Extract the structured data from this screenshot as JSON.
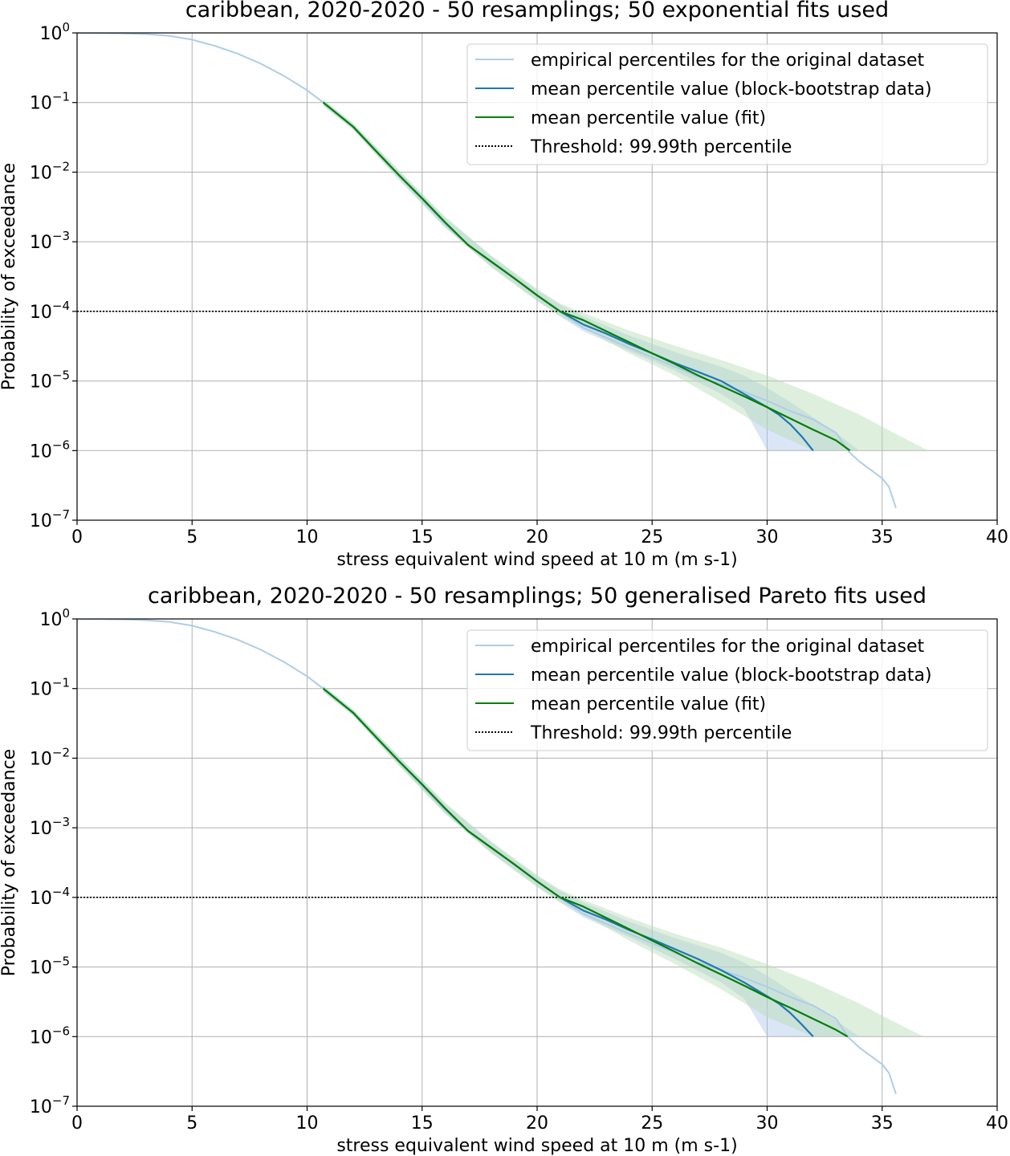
{
  "chart_data": [
    {
      "type": "line",
      "title": "caribbean, 2020-2020 - 50 resamplings; 50 exponential fits used",
      "xlabel": "stress equivalent wind speed at 10 m (m s-1)",
      "ylabel": "Probability of exceedance",
      "xlim": [
        0,
        40
      ],
      "ylim": [
        1e-07,
        1
      ],
      "yscale": "log",
      "grid": true,
      "legend_position": "top-right",
      "x_ticks": [
        "0",
        "5",
        "10",
        "15",
        "20",
        "25",
        "30",
        "35",
        "40"
      ],
      "y_ticks": [
        {
          "base": "10",
          "exp": "0"
        },
        {
          "base": "10",
          "exp": "−1"
        },
        {
          "base": "10",
          "exp": "−2"
        },
        {
          "base": "10",
          "exp": "−3"
        },
        {
          "base": "10",
          "exp": "−4"
        },
        {
          "base": "10",
          "exp": "−5"
        },
        {
          "base": "10",
          "exp": "−6"
        },
        {
          "base": "10",
          "exp": "−7"
        }
      ],
      "threshold": {
        "name": "Threshold: 99.99th percentile",
        "y": 0.0001,
        "color": "#000000"
      },
      "series": [
        {
          "name": "empirical percentiles for the original dataset",
          "color": "#aecde6",
          "points": [
            [
              0,
              1
            ],
            [
              1,
              0.995
            ],
            [
              2,
              0.985
            ],
            [
              3,
              0.96
            ],
            [
              4,
              0.91
            ],
            [
              5,
              0.8
            ],
            [
              6,
              0.65
            ],
            [
              7,
              0.5
            ],
            [
              8,
              0.36
            ],
            [
              9,
              0.24
            ],
            [
              10,
              0.15
            ],
            [
              10.7,
              0.1
            ],
            [
              12,
              0.045
            ],
            [
              13,
              0.02
            ],
            [
              14,
              0.009
            ],
            [
              15,
              0.004
            ],
            [
              16,
              0.0018
            ],
            [
              17,
              0.0009
            ],
            [
              18,
              0.00052
            ],
            [
              19,
              0.0003
            ],
            [
              20,
              0.00017
            ],
            [
              21,
              0.0001
            ],
            [
              22,
              5.8e-05
            ],
            [
              23,
              4.2e-05
            ],
            [
              24,
              3e-05
            ],
            [
              25,
              2.2e-05
            ],
            [
              26,
              1.6e-05
            ],
            [
              27,
              1.15e-05
            ],
            [
              28,
              9e-06
            ],
            [
              29,
              7e-06
            ],
            [
              29.5,
              6e-06
            ],
            [
              30,
              5.2e-06
            ],
            [
              31,
              3.7e-06
            ],
            [
              32,
              2.8e-06
            ],
            [
              33,
              1.8e-06
            ],
            [
              33.5,
              1e-06
            ],
            [
              34,
              7e-07
            ],
            [
              35,
              4e-07
            ],
            [
              35.3,
              3e-07
            ],
            [
              35.6,
              1.5e-07
            ]
          ]
        },
        {
          "name": "mean percentile value (block-bootstrap data)",
          "color": "#1f77b4",
          "points": [
            [
              10.7,
              0.1
            ],
            [
              12,
              0.045
            ],
            [
              13,
              0.02
            ],
            [
              14,
              0.009
            ],
            [
              15,
              0.0042
            ],
            [
              16,
              0.0019
            ],
            [
              17,
              0.0009
            ],
            [
              18,
              0.00052
            ],
            [
              19,
              0.0003
            ],
            [
              20,
              0.00017
            ],
            [
              21,
              0.0001
            ],
            [
              22,
              6.5e-05
            ],
            [
              23,
              4.8e-05
            ],
            [
              24,
              3.4e-05
            ],
            [
              25,
              2.5e-05
            ],
            [
              26,
              1.8e-05
            ],
            [
              27,
              1.35e-05
            ],
            [
              28,
              1e-05
            ],
            [
              29,
              6.5e-06
            ],
            [
              30,
              4.2e-06
            ],
            [
              30.5,
              3.3e-06
            ],
            [
              31,
              2.4e-06
            ],
            [
              31.5,
              1.6e-06
            ],
            [
              32,
              1e-06
            ]
          ]
        },
        {
          "name": "mean percentile value (fit)",
          "color": "#008000",
          "points": [
            [
              10.7,
              0.1
            ],
            [
              12,
              0.045
            ],
            [
              13,
              0.02
            ],
            [
              14,
              0.009
            ],
            [
              15,
              0.0042
            ],
            [
              16,
              0.0019
            ],
            [
              17,
              0.0009
            ],
            [
              18,
              0.00052
            ],
            [
              19,
              0.0003
            ],
            [
              20,
              0.00017
            ],
            [
              21,
              0.0001
            ],
            [
              22,
              7.5e-05
            ],
            [
              23,
              5.2e-05
            ],
            [
              24,
              3.6e-05
            ],
            [
              25,
              2.5e-05
            ],
            [
              26,
              1.75e-05
            ],
            [
              27,
              1.2e-05
            ],
            [
              28,
              8.5e-06
            ],
            [
              29,
              6e-06
            ],
            [
              30,
              4.2e-06
            ],
            [
              31,
              2.9e-06
            ],
            [
              32,
              2e-06
            ],
            [
              33,
              1.4e-06
            ],
            [
              33.6,
              1e-06
            ]
          ]
        }
      ],
      "bands": [
        {
          "of": "mean percentile value (block-bootstrap data)",
          "color": "#aec7e8",
          "x": [
            10.7,
            12,
            14,
            16,
            18,
            20,
            21,
            22,
            24,
            26,
            28,
            29,
            30,
            31,
            32,
            33,
            34
          ],
          "upper": [
            0.11,
            0.05,
            0.0105,
            0.0022,
            0.00062,
            0.0002,
            0.000125,
            8.5e-05,
            4.5e-05,
            2.6e-05,
            1.6e-05,
            1.2e-05,
            8e-06,
            5e-06,
            3e-06,
            1.8e-06,
            1e-06
          ],
          "lower": [
            0.09,
            0.041,
            0.0078,
            0.0016,
            0.00044,
            0.000145,
            8.5e-05,
            5.2e-05,
            2.7e-05,
            1.4e-05,
            6.5e-06,
            4e-06,
            1e-06,
            1e-06,
            1e-06,
            1e-06,
            1e-06
          ]
        },
        {
          "of": "mean percentile value (fit)",
          "color": "#b6dcb6",
          "x": [
            10.7,
            12,
            14,
            16,
            18,
            20,
            21,
            22,
            24,
            26,
            28,
            30,
            32,
            34,
            35,
            37
          ],
          "upper": [
            0.11,
            0.05,
            0.0105,
            0.0023,
            0.00064,
            0.00021,
            0.00013,
            9.5e-05,
            5.3e-05,
            3.2e-05,
            2e-05,
            1.2e-05,
            6.5e-06,
            3.3e-06,
            2.2e-06,
            1e-06
          ],
          "lower": [
            0.09,
            0.041,
            0.0078,
            0.0016,
            0.00043,
            0.00014,
            8.5e-05,
            5.8e-05,
            2.5e-05,
            1.2e-05,
            5e-06,
            2e-06,
            1e-06,
            1e-06,
            1e-06,
            1e-06
          ]
        }
      ]
    },
    {
      "type": "line",
      "title": "caribbean, 2020-2020 - 50 resamplings; 50 generalised Pareto fits used",
      "xlabel": "stress equivalent wind speed at 10 m (m s-1)",
      "ylabel": "Probability of exceedance",
      "xlim": [
        0,
        40
      ],
      "ylim": [
        1e-07,
        1
      ],
      "yscale": "log",
      "grid": true,
      "legend_position": "top-right",
      "x_ticks": [
        "0",
        "5",
        "10",
        "15",
        "20",
        "25",
        "30",
        "35",
        "40"
      ],
      "y_ticks": [
        {
          "base": "10",
          "exp": "0"
        },
        {
          "base": "10",
          "exp": "−1"
        },
        {
          "base": "10",
          "exp": "−2"
        },
        {
          "base": "10",
          "exp": "−3"
        },
        {
          "base": "10",
          "exp": "−4"
        },
        {
          "base": "10",
          "exp": "−5"
        },
        {
          "base": "10",
          "exp": "−6"
        },
        {
          "base": "10",
          "exp": "−7"
        }
      ],
      "threshold": {
        "name": "Threshold: 99.99th percentile",
        "y": 0.0001,
        "color": "#000000"
      },
      "series": [
        {
          "name": "empirical percentiles for the original dataset",
          "color": "#aecde6",
          "points": [
            [
              0,
              1
            ],
            [
              1,
              0.995
            ],
            [
              2,
              0.985
            ],
            [
              3,
              0.96
            ],
            [
              4,
              0.91
            ],
            [
              5,
              0.8
            ],
            [
              6,
              0.65
            ],
            [
              7,
              0.5
            ],
            [
              8,
              0.36
            ],
            [
              9,
              0.24
            ],
            [
              10,
              0.15
            ],
            [
              10.7,
              0.1
            ],
            [
              12,
              0.045
            ],
            [
              13,
              0.02
            ],
            [
              14,
              0.009
            ],
            [
              15,
              0.004
            ],
            [
              16,
              0.0018
            ],
            [
              17,
              0.0009
            ],
            [
              18,
              0.00052
            ],
            [
              19,
              0.0003
            ],
            [
              20,
              0.00017
            ],
            [
              21,
              0.0001
            ],
            [
              22,
              5.8e-05
            ],
            [
              23,
              4.2e-05
            ],
            [
              24,
              3e-05
            ],
            [
              25,
              2.2e-05
            ],
            [
              26,
              1.6e-05
            ],
            [
              27,
              1.15e-05
            ],
            [
              28,
              9e-06
            ],
            [
              29,
              7e-06
            ],
            [
              29.5,
              6e-06
            ],
            [
              30,
              5.2e-06
            ],
            [
              31,
              3.7e-06
            ],
            [
              32,
              2.8e-06
            ],
            [
              33,
              1.8e-06
            ],
            [
              33.5,
              1e-06
            ],
            [
              34,
              7e-07
            ],
            [
              35,
              4e-07
            ],
            [
              35.3,
              3e-07
            ],
            [
              35.6,
              1.5e-07
            ]
          ]
        },
        {
          "name": "mean percentile value (block-bootstrap data)",
          "color": "#1f77b4",
          "points": [
            [
              10.7,
              0.1
            ],
            [
              12,
              0.045
            ],
            [
              13,
              0.02
            ],
            [
              14,
              0.009
            ],
            [
              15,
              0.0042
            ],
            [
              16,
              0.0019
            ],
            [
              17,
              0.0009
            ],
            [
              18,
              0.00052
            ],
            [
              19,
              0.0003
            ],
            [
              20,
              0.00017
            ],
            [
              21,
              0.0001
            ],
            [
              22,
              6.5e-05
            ],
            [
              23,
              4.8e-05
            ],
            [
              24,
              3.4e-05
            ],
            [
              25,
              2.5e-05
            ],
            [
              26,
              1.8e-05
            ],
            [
              27,
              1.3e-05
            ],
            [
              28,
              9e-06
            ],
            [
              29,
              6e-06
            ],
            [
              30,
              3.8e-06
            ],
            [
              30.5,
              3e-06
            ],
            [
              31,
              2.2e-06
            ],
            [
              31.5,
              1.5e-06
            ],
            [
              32,
              1e-06
            ]
          ]
        },
        {
          "name": "mean percentile value (fit)",
          "color": "#008000",
          "points": [
            [
              10.7,
              0.1
            ],
            [
              12,
              0.045
            ],
            [
              13,
              0.02
            ],
            [
              14,
              0.009
            ],
            [
              15,
              0.0042
            ],
            [
              16,
              0.0019
            ],
            [
              17,
              0.0009
            ],
            [
              18,
              0.00052
            ],
            [
              19,
              0.0003
            ],
            [
              20,
              0.00017
            ],
            [
              21,
              0.0001
            ],
            [
              22,
              7.4e-05
            ],
            [
              23,
              5.1e-05
            ],
            [
              24,
              3.5e-05
            ],
            [
              25,
              2.4e-05
            ],
            [
              26,
              1.65e-05
            ],
            [
              27,
              1.12e-05
            ],
            [
              28,
              7.8e-06
            ],
            [
              29,
              5.4e-06
            ],
            [
              30,
              3.7e-06
            ],
            [
              31,
              2.6e-06
            ],
            [
              32,
              1.8e-06
            ],
            [
              33,
              1.25e-06
            ],
            [
              33.5,
              1e-06
            ]
          ]
        }
      ],
      "bands": [
        {
          "of": "mean percentile value (block-bootstrap data)",
          "color": "#aec7e8",
          "x": [
            10.7,
            12,
            14,
            16,
            18,
            20,
            21,
            22,
            24,
            26,
            28,
            29,
            30,
            31,
            32,
            33,
            34
          ],
          "upper": [
            0.11,
            0.05,
            0.0105,
            0.0022,
            0.00062,
            0.0002,
            0.000125,
            8.5e-05,
            4.5e-05,
            2.6e-05,
            1.6e-05,
            1.15e-05,
            7.5e-06,
            4.6e-06,
            2.8e-06,
            1.7e-06,
            1e-06
          ],
          "lower": [
            0.09,
            0.041,
            0.0078,
            0.0016,
            0.00044,
            0.000145,
            8.5e-05,
            5.2e-05,
            2.7e-05,
            1.3e-05,
            6e-06,
            3.5e-06,
            1e-06,
            1e-06,
            1e-06,
            1e-06,
            1e-06
          ]
        },
        {
          "of": "mean percentile value (fit)",
          "color": "#b6dcb6",
          "x": [
            10.7,
            12,
            14,
            16,
            18,
            20,
            21,
            22,
            24,
            26,
            28,
            30,
            32,
            34,
            35,
            36.8
          ],
          "upper": [
            0.11,
            0.05,
            0.0105,
            0.0023,
            0.00064,
            0.00021,
            0.00013,
            9.3e-05,
            5.1e-05,
            3e-05,
            1.9e-05,
            1.1e-05,
            6e-06,
            3e-06,
            2e-06,
            1e-06
          ],
          "lower": [
            0.09,
            0.041,
            0.0078,
            0.0016,
            0.00043,
            0.00014,
            8.5e-05,
            5.7e-05,
            2.4e-05,
            1.1e-05,
            4.8e-06,
            1.9e-06,
            1e-06,
            1e-06,
            1e-06,
            1e-06
          ]
        }
      ]
    }
  ]
}
